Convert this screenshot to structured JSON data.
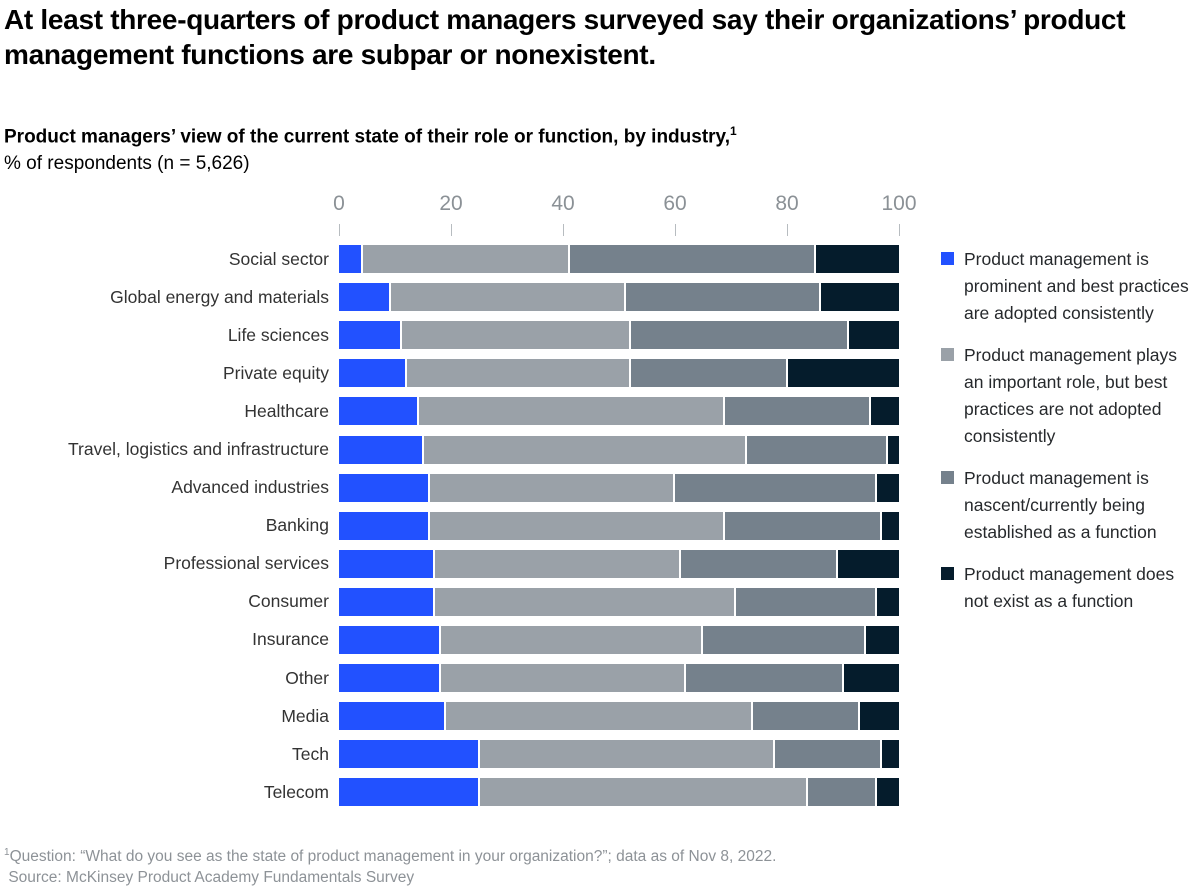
{
  "header": {
    "title": "At least three-quarters of product managers surveyed say their organizations’ product management functions are subpar or nonexistent.",
    "subtitle_line1": "Product managers’ view of the current state of their role or function, by industry,",
    "subtitle_sup": "1",
    "subtitle_line2": "% of respondents (n = 5,626)"
  },
  "chart_data": {
    "type": "bar",
    "orientation": "horizontal",
    "stacked": true,
    "units": "% of respondents",
    "xlim": [
      0,
      100
    ],
    "ticks": [
      0,
      20,
      40,
      60,
      80,
      100
    ],
    "grid": false,
    "legend_position": "right",
    "categories": [
      "Social sector",
      "Global energy and materials",
      "Life sciences",
      "Private equity",
      "Healthcare",
      "Travel, logistics and infrastructure",
      "Advanced industries",
      "Banking",
      "Professional services",
      "Consumer",
      "Insurance",
      "Other",
      "Media",
      "Tech",
      "Telecom"
    ],
    "series": [
      {
        "name": "Product management is prominent and best practices are adopted consistently",
        "color": "#2251FF",
        "values": [
          4,
          9,
          11,
          12,
          14,
          15,
          16,
          16,
          17,
          17,
          18,
          18,
          19,
          25,
          25
        ]
      },
      {
        "name": "Product management plays an important role, but best practices are not adopted consistently",
        "color": "#9AA1A8",
        "values": [
          37,
          42,
          41,
          40,
          55,
          58,
          44,
          53,
          44,
          54,
          47,
          44,
          55,
          53,
          59
        ]
      },
      {
        "name": "Product management is nascent/currently being established as a function",
        "color": "#75818C",
        "values": [
          44,
          35,
          39,
          28,
          26,
          25,
          36,
          28,
          28,
          25,
          29,
          28,
          19,
          19,
          12
        ]
      },
      {
        "name": "Product management does not exist as a function",
        "color": "#051C2C",
        "values": [
          15,
          14,
          9,
          20,
          5,
          2,
          4,
          3,
          11,
          4,
          6,
          10,
          7,
          3,
          4
        ]
      }
    ]
  },
  "footnote": {
    "sup": "1",
    "line1": "Question: “What do you see as the state of product management in your organization?”; data as of Nov 8, 2022.",
    "line2": "Source: McKinsey Product Academy Fundamentals Survey"
  }
}
